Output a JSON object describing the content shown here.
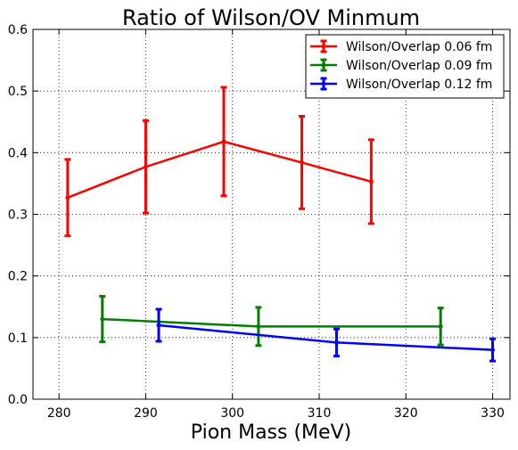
{
  "chart_data": {
    "type": "line",
    "title": "Ratio of Wilson/OV Minmum",
    "xlabel": "Pion Mass (MeV)",
    "ylabel": "",
    "xlim": [
      277,
      332
    ],
    "ylim": [
      0.0,
      0.6
    ],
    "xticks": [
      "280",
      "290",
      "300",
      "310",
      "320",
      "330"
    ],
    "yticks": [
      "0.0",
      "0.1",
      "0.2",
      "0.3",
      "0.4",
      "0.5",
      "0.6"
    ],
    "grid": true,
    "legend_position": "top-right",
    "series": [
      {
        "name": "Wilson/Overlap 0.06 fm",
        "color": "#ff0000",
        "points": [
          {
            "x": 281,
            "y": 0.327,
            "err": 0.062
          },
          {
            "x": 290,
            "y": 0.377,
            "err": 0.075
          },
          {
            "x": 299,
            "y": 0.418,
            "err": 0.088
          },
          {
            "x": 308,
            "y": 0.384,
            "err": 0.075
          },
          {
            "x": 316,
            "y": 0.353,
            "err": 0.068
          }
        ]
      },
      {
        "name": "Wilson/Overlap 0.09 fm",
        "color": "#008000",
        "points": [
          {
            "x": 285,
            "y": 0.13,
            "err": 0.037
          },
          {
            "x": 303,
            "y": 0.118,
            "err": 0.031
          },
          {
            "x": 324,
            "y": 0.118,
            "err": 0.03
          }
        ]
      },
      {
        "name": "Wilson/Overlap 0.12 fm",
        "color": "#0000ff",
        "points": [
          {
            "x": 291.5,
            "y": 0.12,
            "err": 0.026
          },
          {
            "x": 312,
            "y": 0.092,
            "err": 0.022
          },
          {
            "x": 330,
            "y": 0.08,
            "err": 0.018
          }
        ]
      }
    ]
  }
}
